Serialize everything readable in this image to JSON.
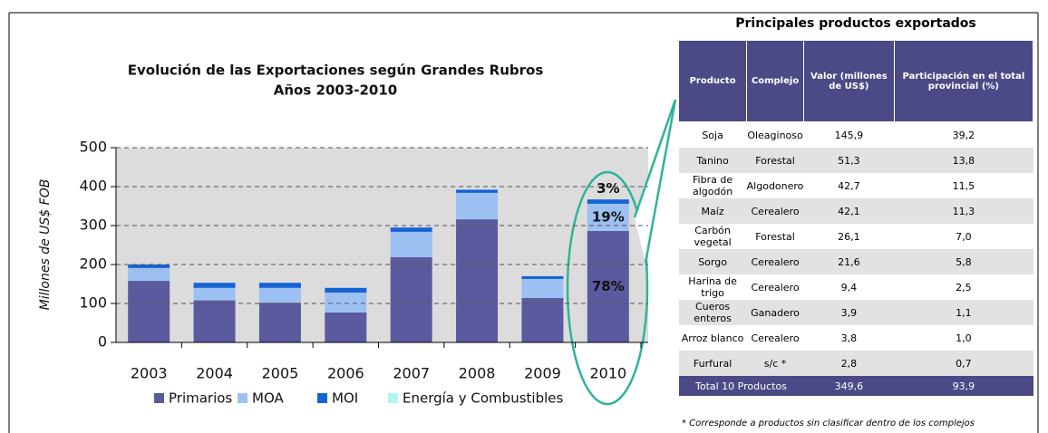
{
  "chart_data": {
    "type": "stacked_bar",
    "title": "Evolución de las Exportaciones según Grandes Rubros",
    "subtitle": "Años 2003-2010",
    "y_label": "Millones de US$ FOB",
    "categories": [
      "2003",
      "2004",
      "2005",
      "2006",
      "2007",
      "2008",
      "2009",
      "2010"
    ],
    "series": [
      {
        "name": "Primarios",
        "color": "#5b5a9e",
        "values": [
          158,
          108,
          102,
          77,
          219,
          316,
          114,
          286
        ]
      },
      {
        "name": "MOA",
        "color": "#9dc0f2",
        "values": [
          33,
          32,
          38,
          51,
          65,
          68,
          49,
          70
        ]
      },
      {
        "name": "MOI",
        "color": "#1463d6",
        "values": [
          9,
          13,
          13,
          12,
          11,
          8,
          7,
          11
        ]
      },
      {
        "name": "Energía y Combustibles",
        "color": "#b4f4f0",
        "values": [
          0,
          0,
          0,
          0,
          0,
          0,
          0,
          0
        ]
      }
    ],
    "annotations": [
      "78%",
      "19%",
      "3%"
    ],
    "ylim": [
      0,
      500
    ],
    "yticks": [
      0,
      100,
      200,
      300,
      400,
      500
    ],
    "grid": true
  },
  "table": {
    "title": "Principales productos exportados",
    "header": [
      "Producto",
      "Complejo",
      "Valor (millones de US$)",
      "Participación en el total provincial (%)"
    ],
    "rows": [
      [
        "Soja",
        "Oleaginoso",
        "145,9",
        "39,2"
      ],
      [
        "Tanino",
        "Forestal",
        "51,3",
        "13,8"
      ],
      [
        "Fibra de algodón",
        "Algodonero",
        "42,7",
        "11,5"
      ],
      [
        "Maíz",
        "Cerealero",
        "42,1",
        "11,3"
      ],
      [
        "Carbón vegetal",
        "Forestal",
        "26,1",
        "7,0"
      ],
      [
        "Sorgo",
        "Cerealero",
        "21,6",
        "5,8"
      ],
      [
        "Harina de trigo",
        "Cerealero",
        "9,4",
        "2,5"
      ],
      [
        "Cueros enteros",
        "Ganadero",
        "3,9",
        "1,1"
      ],
      [
        "Arroz blanco",
        "Cerealero",
        "3,8",
        "1,0"
      ],
      [
        "Furfural",
        "s/c *",
        "2,8",
        "0,7"
      ]
    ],
    "total": [
      "Total 10 Productos",
      "349,6",
      "93,9"
    ],
    "note": "* Corresponde a productos sin clasificar dentro de los complejos"
  }
}
